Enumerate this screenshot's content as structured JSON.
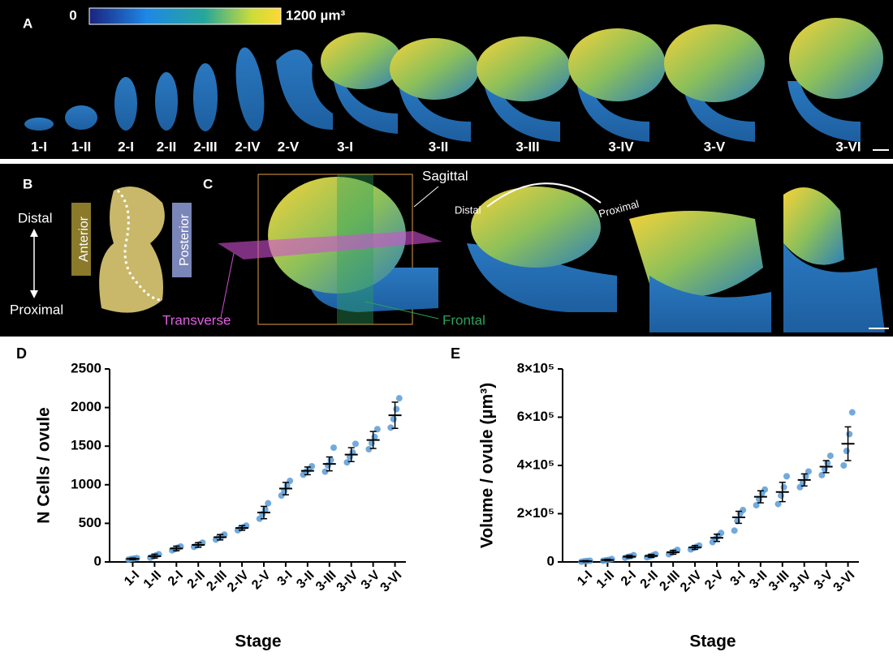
{
  "panel_a": {
    "label": "A",
    "colorbar_min": "0",
    "colorbar_max": "1200 µm³",
    "stage_labels": [
      "1-I",
      "1-II",
      "2-I",
      "2-II",
      "2-III",
      "2-IV",
      "2-V",
      "3-I",
      "3-II",
      "3-III",
      "3-IV",
      "3-V",
      "3-VI"
    ]
  },
  "panel_b": {
    "label": "B",
    "distal": "Distal",
    "proximal": "Proximal",
    "anterior": "Anterior",
    "posterior": "Posterior"
  },
  "panel_c": {
    "label": "C",
    "sagittal": "Sagittal",
    "transverse": "Transverse",
    "frontal": "Frontal",
    "distal": "Distal",
    "proximal": "Proximal"
  },
  "chart_data": [
    {
      "type": "scatter",
      "panel_label": "D",
      "x_label": "Stage",
      "y_label": "N Cells / ovule",
      "color": "#5b9bd5",
      "categories": [
        "1-I",
        "1-II",
        "2-I",
        "2-II",
        "2-III",
        "2-IV",
        "2-V",
        "3-I",
        "3-II",
        "3-III",
        "3-IV",
        "3-V",
        "3-VI"
      ],
      "values": [
        40,
        75,
        175,
        220,
        320,
        440,
        640,
        950,
        1180,
        1270,
        1390,
        1580,
        1900
      ],
      "errors": [
        10,
        25,
        30,
        30,
        35,
        30,
        80,
        80,
        50,
        90,
        90,
        110,
        170
      ],
      "points": [
        [
          30,
          40,
          45,
          50
        ],
        [
          55,
          70,
          85,
          100
        ],
        [
          150,
          165,
          185,
          200
        ],
        [
          195,
          215,
          230,
          250
        ],
        [
          290,
          315,
          330,
          355
        ],
        [
          410,
          435,
          450,
          470
        ],
        [
          560,
          620,
          680,
          760
        ],
        [
          860,
          920,
          990,
          1050
        ],
        [
          1130,
          1170,
          1200,
          1240
        ],
        [
          1170,
          1250,
          1320,
          1480
        ],
        [
          1290,
          1360,
          1420,
          1530
        ],
        [
          1460,
          1540,
          1620,
          1720
        ],
        [
          1740,
          1850,
          1980,
          2120
        ]
      ],
      "ylim": [
        0,
        2500
      ],
      "yticks": [
        0,
        500,
        1000,
        1500,
        2000,
        2500
      ]
    },
    {
      "type": "scatter",
      "panel_label": "E",
      "x_label": "Stage",
      "y_label": "Volume / ovule (µm³)",
      "color": "#5b9bd5",
      "categories": [
        "1-I",
        "1-II",
        "2-I",
        "2-II",
        "2-III",
        "2-IV",
        "2-V",
        "3-I",
        "3-II",
        "3-III",
        "3-IV",
        "3-V",
        "3-VI"
      ],
      "values": [
        3000,
        8000,
        22000,
        25000,
        40000,
        60000,
        100000,
        185000,
        270000,
        290000,
        340000,
        395000,
        490000
      ],
      "errors": [
        2000,
        3000,
        5000,
        6000,
        8000,
        8000,
        15000,
        25000,
        25000,
        40000,
        25000,
        25000,
        70000
      ],
      "points": [
        [
          1000,
          3000,
          4000,
          5000
        ],
        [
          5000,
          7000,
          9000,
          12000
        ],
        [
          17000,
          21000,
          24000,
          28000
        ],
        [
          19000,
          23000,
          27000,
          32000
        ],
        [
          32000,
          38000,
          43000,
          50000
        ],
        [
          52000,
          58000,
          63000,
          68000
        ],
        [
          82000,
          95000,
          108000,
          120000
        ],
        [
          130000,
          170000,
          200000,
          215000
        ],
        [
          235000,
          260000,
          285000,
          300000
        ],
        [
          240000,
          275000,
          310000,
          355000
        ],
        [
          310000,
          330000,
          355000,
          375000
        ],
        [
          360000,
          385000,
          410000,
          440000
        ],
        [
          400000,
          460000,
          530000,
          620000
        ]
      ],
      "ylim": [
        0,
        800000
      ],
      "yticks": [
        0,
        {
          "value": 200000,
          "label": "2×10⁵"
        },
        {
          "value": 400000,
          "label": "4×10⁵"
        },
        {
          "value": 600000,
          "label": "6×10⁵"
        },
        {
          "value": 800000,
          "label": "8×10⁵"
        }
      ]
    }
  ]
}
